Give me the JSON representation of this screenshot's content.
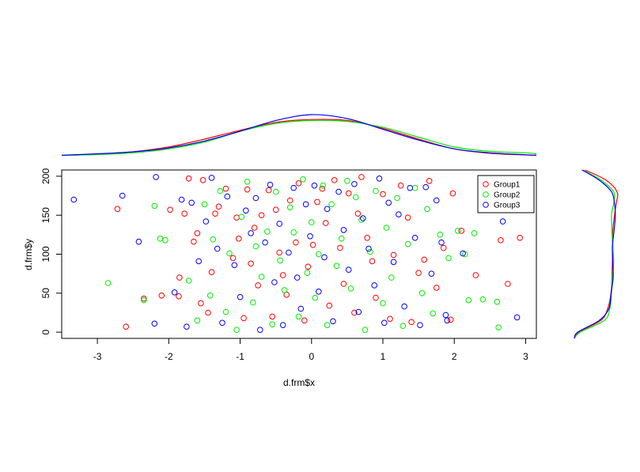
{
  "chart_data": {
    "type": "scatter",
    "title": "",
    "xlabel": "d.frm$x",
    "ylabel": "d.frm$y",
    "xlim": [
      -3.5,
      3.15
    ],
    "ylim": [
      -8,
      208
    ],
    "x_ticks": [
      -3,
      -2,
      -1,
      0,
      1,
      2,
      3
    ],
    "y_ticks": [
      0,
      50,
      100,
      150,
      200
    ],
    "grid": false,
    "legend_position": "top-right",
    "series": [
      {
        "name": "Group1",
        "color": "#ff0000",
        "points": [
          [
            -2.6,
            7
          ],
          [
            -2.72,
            158
          ],
          [
            -2.35,
            43
          ],
          [
            -2.1,
            47
          ],
          [
            -1.98,
            157
          ],
          [
            -1.86,
            46
          ],
          [
            -1.85,
            70
          ],
          [
            -1.78,
            152
          ],
          [
            -1.72,
            197
          ],
          [
            -1.65,
            116
          ],
          [
            -1.6,
            127
          ],
          [
            -1.55,
            37
          ],
          [
            -1.52,
            195
          ],
          [
            -1.45,
            25
          ],
          [
            -1.4,
            77
          ],
          [
            -1.35,
            152
          ],
          [
            -1.3,
            161
          ],
          [
            -1.2,
            184
          ],
          [
            -1.1,
            95
          ],
          [
            -1.05,
            147
          ],
          [
            -1.02,
            120
          ],
          [
            -0.95,
            18
          ],
          [
            -0.9,
            183
          ],
          [
            -0.85,
            88
          ],
          [
            -0.8,
            134
          ],
          [
            -0.75,
            60
          ],
          [
            -0.7,
            150
          ],
          [
            -0.6,
            182
          ],
          [
            -0.55,
            20
          ],
          [
            -0.5,
            157
          ],
          [
            -0.45,
            102
          ],
          [
            -0.4,
            73
          ],
          [
            -0.35,
            48
          ],
          [
            -0.3,
            169
          ],
          [
            -0.22,
            115
          ],
          [
            -0.18,
            191
          ],
          [
            -0.1,
            15
          ],
          [
            -0.05,
            84
          ],
          [
            0.02,
            112
          ],
          [
            0.08,
            167
          ],
          [
            0.15,
            184
          ],
          [
            0.2,
            140
          ],
          [
            0.25,
            34
          ],
          [
            0.32,
            195
          ],
          [
            0.4,
            108
          ],
          [
            0.45,
            62
          ],
          [
            0.52,
            178
          ],
          [
            0.6,
            25
          ],
          [
            0.65,
            152
          ],
          [
            0.7,
            199
          ],
          [
            0.78,
            121
          ],
          [
            0.85,
            91
          ],
          [
            0.9,
            44
          ],
          [
            1.0,
            177
          ],
          [
            1.1,
            17
          ],
          [
            1.15,
            99
          ],
          [
            1.25,
            188
          ],
          [
            1.35,
            147
          ],
          [
            1.4,
            13
          ],
          [
            1.5,
            76
          ],
          [
            1.58,
            93
          ],
          [
            1.65,
            194
          ],
          [
            1.75,
            57
          ],
          [
            1.85,
            108
          ],
          [
            1.95,
            16
          ],
          [
            1.98,
            178
          ],
          [
            2.1,
            130
          ],
          [
            2.3,
            73
          ],
          [
            2.65,
            118
          ],
          [
            2.75,
            62
          ],
          [
            2.92,
            121
          ]
        ]
      },
      {
        "name": "Group2",
        "color": "#00ee00",
        "points": [
          [
            -2.85,
            63
          ],
          [
            -2.35,
            41
          ],
          [
            -2.2,
            162
          ],
          [
            -2.12,
            120
          ],
          [
            -2.05,
            118
          ],
          [
            -1.72,
            66
          ],
          [
            -1.6,
            15
          ],
          [
            -1.5,
            164
          ],
          [
            -1.42,
            47
          ],
          [
            -1.38,
            119
          ],
          [
            -1.28,
            181
          ],
          [
            -1.2,
            26
          ],
          [
            -1.15,
            101
          ],
          [
            -1.05,
            3
          ],
          [
            -0.98,
            148
          ],
          [
            -0.9,
            193
          ],
          [
            -0.82,
            38
          ],
          [
            -0.78,
            110
          ],
          [
            -0.7,
            71
          ],
          [
            -0.62,
            129
          ],
          [
            -0.55,
            10
          ],
          [
            -0.5,
            180
          ],
          [
            -0.44,
            92
          ],
          [
            -0.38,
            54
          ],
          [
            -0.3,
            160
          ],
          [
            -0.25,
            128
          ],
          [
            -0.18,
            20
          ],
          [
            -0.12,
            196
          ],
          [
            -0.06,
            76
          ],
          [
            0.0,
            141
          ],
          [
            0.05,
            44
          ],
          [
            0.1,
            100
          ],
          [
            0.16,
            188
          ],
          [
            0.22,
            9
          ],
          [
            0.28,
            164
          ],
          [
            0.35,
            85
          ],
          [
            0.42,
            120
          ],
          [
            0.5,
            194
          ],
          [
            0.55,
            56
          ],
          [
            0.62,
            173
          ],
          [
            0.7,
            144
          ],
          [
            0.75,
            3
          ],
          [
            0.82,
            103
          ],
          [
            0.9,
            181
          ],
          [
            1.0,
            37
          ],
          [
            1.05,
            134
          ],
          [
            1.12,
            70
          ],
          [
            1.2,
            172
          ],
          [
            1.28,
            8
          ],
          [
            1.35,
            113
          ],
          [
            1.45,
            185
          ],
          [
            1.55,
            50
          ],
          [
            1.62,
            158
          ],
          [
            1.7,
            24
          ],
          [
            1.8,
            125
          ],
          [
            1.92,
            95
          ],
          [
            2.05,
            130
          ],
          [
            2.15,
            100
          ],
          [
            2.2,
            41
          ],
          [
            2.28,
            127
          ],
          [
            2.4,
            42
          ],
          [
            2.6,
            39
          ],
          [
            2.62,
            6
          ]
        ]
      },
      {
        "name": "Group3",
        "color": "#0000ff",
        "points": [
          [
            -3.33,
            170
          ],
          [
            -2.65,
            175
          ],
          [
            -2.42,
            116
          ],
          [
            -2.2,
            11
          ],
          [
            -2.18,
            199
          ],
          [
            -1.92,
            51
          ],
          [
            -1.82,
            170
          ],
          [
            -1.75,
            7
          ],
          [
            -1.68,
            166
          ],
          [
            -1.58,
            91
          ],
          [
            -1.48,
            142
          ],
          [
            -1.4,
            198
          ],
          [
            -1.32,
            107
          ],
          [
            -1.25,
            12
          ],
          [
            -1.18,
            174
          ],
          [
            -1.08,
            86
          ],
          [
            -1.0,
            45
          ],
          [
            -0.92,
            156
          ],
          [
            -0.85,
            127
          ],
          [
            -0.78,
            172
          ],
          [
            -0.72,
            3
          ],
          [
            -0.65,
            115
          ],
          [
            -0.58,
            189
          ],
          [
            -0.52,
            64
          ],
          [
            -0.45,
            139
          ],
          [
            -0.4,
            9
          ],
          [
            -0.32,
            102
          ],
          [
            -0.25,
            185
          ],
          [
            -0.2,
            70
          ],
          [
            -0.15,
            30
          ],
          [
            -0.08,
            164
          ],
          [
            -0.02,
            123
          ],
          [
            0.04,
            188
          ],
          [
            0.1,
            52
          ],
          [
            0.18,
            96
          ],
          [
            0.22,
            158
          ],
          [
            0.3,
            14
          ],
          [
            0.38,
            180
          ],
          [
            0.45,
            131
          ],
          [
            0.52,
            80
          ],
          [
            0.6,
            190
          ],
          [
            0.66,
            26
          ],
          [
            0.72,
            146
          ],
          [
            0.8,
            107
          ],
          [
            0.88,
            60
          ],
          [
            0.95,
            197
          ],
          [
            1.02,
            12
          ],
          [
            1.08,
            166
          ],
          [
            1.15,
            90
          ],
          [
            1.22,
            151
          ],
          [
            1.3,
            33
          ],
          [
            1.38,
            185
          ],
          [
            1.45,
            121
          ],
          [
            1.52,
            9
          ],
          [
            1.6,
            186
          ],
          [
            1.68,
            75
          ],
          [
            1.75,
            169
          ],
          [
            1.82,
            115
          ],
          [
            1.88,
            22
          ],
          [
            1.9,
            15
          ],
          [
            2.12,
            101
          ],
          [
            2.45,
            160
          ],
          [
            2.68,
            142
          ],
          [
            2.88,
            19
          ]
        ]
      }
    ],
    "marginals": {
      "x_density": {
        "grid": [
          -3.5,
          -3.0,
          -2.5,
          -2.0,
          -1.5,
          -1.0,
          -0.5,
          0.0,
          0.5,
          1.0,
          1.5,
          2.0,
          2.5,
          3.0,
          3.15
        ],
        "Group1": [
          0.005,
          0.015,
          0.04,
          0.09,
          0.17,
          0.26,
          0.34,
          0.37,
          0.36,
          0.28,
          0.17,
          0.07,
          0.025,
          0.008,
          0.005
        ],
        "Group2": [
          0.005,
          0.012,
          0.03,
          0.07,
          0.14,
          0.25,
          0.33,
          0.36,
          0.35,
          0.29,
          0.19,
          0.09,
          0.045,
          0.03,
          0.02
        ],
        "Group3": [
          0.005,
          0.02,
          0.04,
          0.08,
          0.15,
          0.25,
          0.36,
          0.42,
          0.38,
          0.27,
          0.16,
          0.07,
          0.03,
          0.01,
          0.005
        ]
      },
      "y_density": {
        "grid": [
          -8,
          0,
          15,
          30,
          50,
          70,
          90,
          110,
          130,
          150,
          165,
          180,
          195,
          208
        ],
        "Group1": [
          0.0,
          0.1,
          0.62,
          0.78,
          0.86,
          0.88,
          0.89,
          0.9,
          0.9,
          0.94,
          0.98,
          1.0,
          0.74,
          0.25
        ],
        "Group2": [
          0.0,
          0.14,
          0.7,
          0.83,
          0.87,
          0.89,
          0.92,
          0.9,
          0.88,
          0.87,
          0.92,
          0.92,
          0.62,
          0.2
        ],
        "Group3": [
          0.0,
          0.08,
          0.58,
          0.81,
          0.86,
          0.91,
          0.9,
          0.89,
          0.93,
          0.96,
          0.94,
          0.87,
          0.58,
          0.18
        ]
      }
    }
  }
}
